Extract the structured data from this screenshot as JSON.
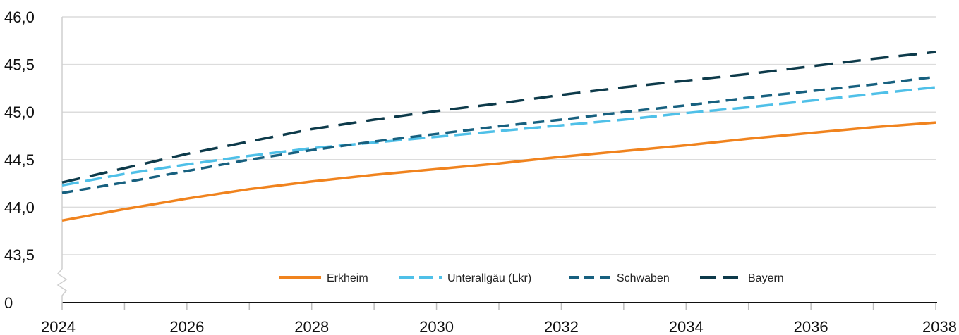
{
  "chart_data": {
    "type": "line",
    "x": [
      2024,
      2025,
      2026,
      2027,
      2028,
      2029,
      2030,
      2031,
      2032,
      2033,
      2034,
      2035,
      2036,
      2037,
      2038
    ],
    "x_ticks": [
      "2024",
      "2026",
      "2028",
      "2030",
      "2032",
      "2034",
      "2036",
      "2038"
    ],
    "y_ticks": [
      "0",
      "43,5",
      "44,0",
      "44,5",
      "45,0",
      "45,5",
      "46,0"
    ],
    "y_axis_break": true,
    "ylim": [
      43.5,
      46.0
    ],
    "grid": "horizontal",
    "legend_position": "bottom-center inside plot",
    "series": [
      {
        "name": "Erkheim",
        "color": "#F0831E",
        "style": "solid",
        "values": [
          43.86,
          43.98,
          44.09,
          44.19,
          44.27,
          44.34,
          44.4,
          44.46,
          44.53,
          44.59,
          44.65,
          44.72,
          44.78,
          44.84,
          44.89
        ]
      },
      {
        "name": "Unterallgäu (Lkr)",
        "color": "#4FC0E8",
        "style": "dashed",
        "values": [
          44.23,
          44.35,
          44.45,
          44.54,
          44.62,
          44.68,
          44.74,
          44.8,
          44.86,
          44.92,
          44.99,
          45.05,
          45.12,
          45.19,
          45.26
        ]
      },
      {
        "name": "Schwaben",
        "color": "#17607F",
        "style": "dashed",
        "values": [
          44.15,
          44.26,
          44.38,
          44.5,
          44.6,
          44.69,
          44.77,
          44.85,
          44.92,
          45.0,
          45.07,
          45.15,
          45.22,
          45.29,
          45.37
        ]
      },
      {
        "name": "Bayern",
        "color": "#0D3A4A",
        "style": "dashed",
        "values": [
          44.26,
          44.41,
          44.56,
          44.69,
          44.82,
          44.92,
          45.01,
          45.09,
          45.18,
          45.26,
          45.33,
          45.4,
          45.48,
          45.56,
          45.63
        ]
      }
    ]
  }
}
